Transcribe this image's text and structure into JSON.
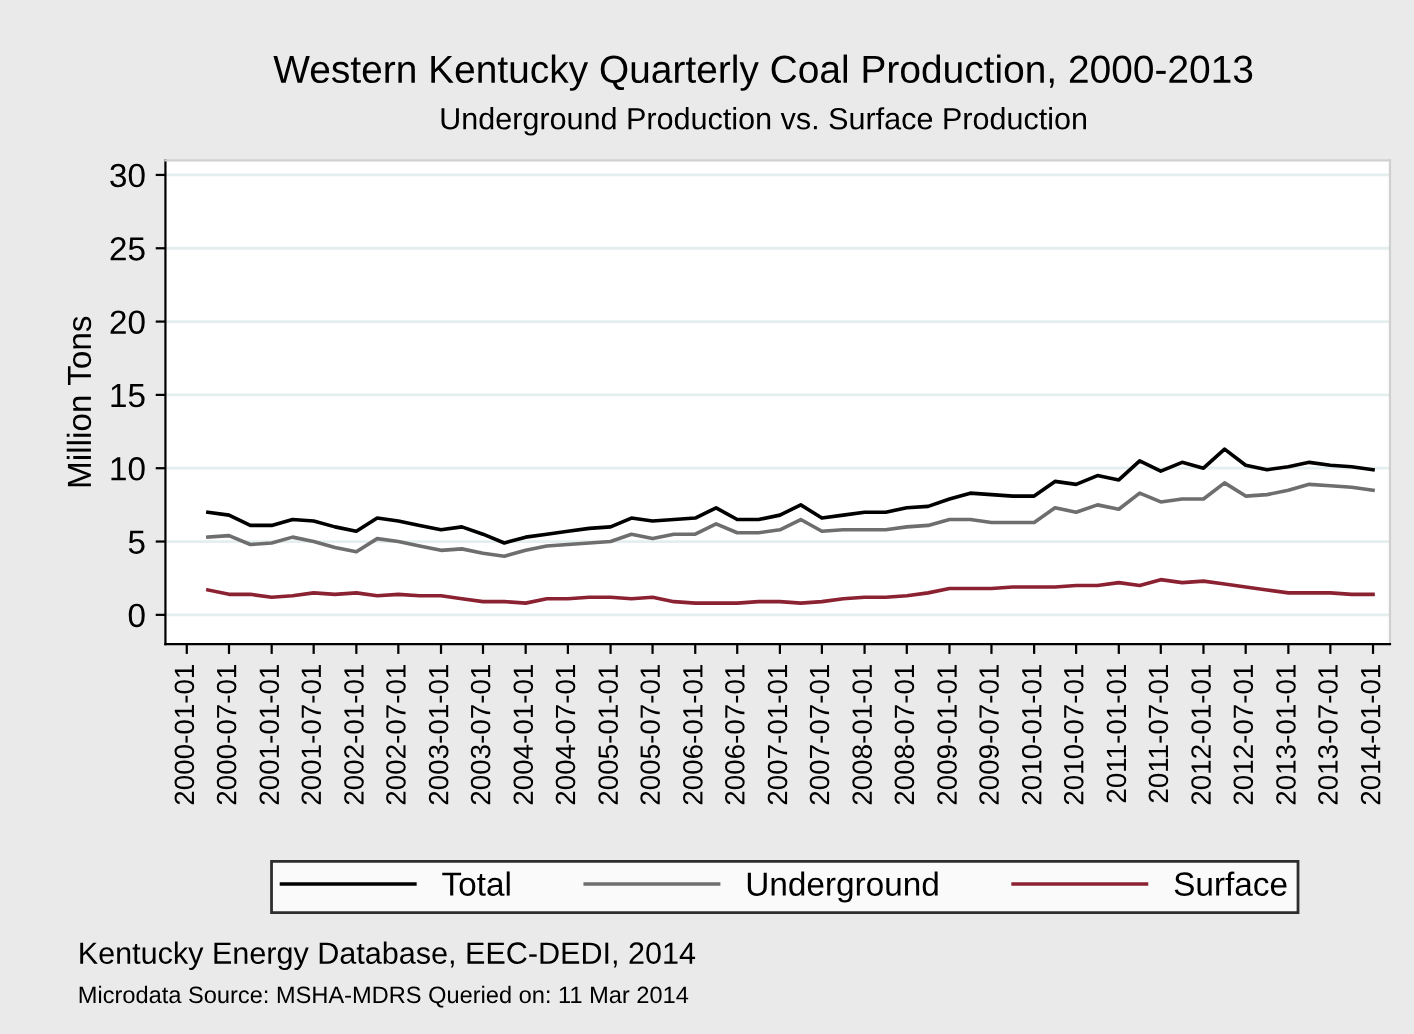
{
  "chart_data": {
    "type": "line",
    "title": "Western Kentucky Quarterly Coal Production, 2000-2013",
    "subtitle": "Underground Production vs. Surface Production",
    "ylabel": "Million Tons",
    "x": [
      "2000-04-01",
      "2000-07-01",
      "2000-10-01",
      "2001-01-01",
      "2001-04-01",
      "2001-07-01",
      "2001-10-01",
      "2002-01-01",
      "2002-04-01",
      "2002-07-01",
      "2002-10-01",
      "2003-01-01",
      "2003-04-01",
      "2003-07-01",
      "2003-10-01",
      "2004-01-01",
      "2004-04-01",
      "2004-07-01",
      "2004-10-01",
      "2005-01-01",
      "2005-04-01",
      "2005-07-01",
      "2005-10-01",
      "2006-01-01",
      "2006-04-01",
      "2006-07-01",
      "2006-10-01",
      "2007-01-01",
      "2007-04-01",
      "2007-07-01",
      "2007-10-01",
      "2008-01-01",
      "2008-04-01",
      "2008-07-01",
      "2008-10-01",
      "2009-01-01",
      "2009-04-01",
      "2009-07-01",
      "2009-10-01",
      "2010-01-01",
      "2010-04-01",
      "2010-07-01",
      "2010-10-01",
      "2011-01-01",
      "2011-04-01",
      "2011-07-01",
      "2011-10-01",
      "2012-01-01",
      "2012-04-01",
      "2012-07-01",
      "2012-10-01",
      "2013-01-01",
      "2013-04-01",
      "2013-07-01",
      "2013-10-01",
      "2014-01-01"
    ],
    "series": [
      {
        "name": "Total",
        "color": "#000000",
        "values": [
          7.0,
          6.8,
          6.1,
          6.1,
          6.5,
          6.4,
          6.0,
          5.7,
          6.6,
          6.4,
          6.1,
          5.8,
          6.0,
          5.5,
          4.9,
          5.3,
          5.5,
          5.7,
          5.9,
          6.0,
          6.6,
          6.4,
          6.5,
          6.6,
          7.3,
          6.5,
          6.5,
          6.8,
          7.5,
          6.6,
          6.8,
          7.0,
          7.0,
          7.3,
          7.4,
          7.9,
          8.3,
          8.2,
          8.1,
          8.1,
          9.1,
          8.9,
          9.5,
          9.2,
          10.5,
          9.8,
          10.4,
          10.0,
          11.3,
          10.2,
          9.9,
          10.1,
          10.4,
          10.2,
          10.1,
          9.9
        ]
      },
      {
        "name": "Underground",
        "color": "#6e6e6e",
        "values": [
          5.3,
          5.4,
          4.8,
          4.9,
          5.3,
          5.0,
          4.6,
          4.3,
          5.2,
          5.0,
          4.7,
          4.4,
          4.5,
          4.2,
          4.0,
          4.4,
          4.7,
          4.8,
          4.9,
          5.0,
          5.5,
          5.2,
          5.5,
          5.5,
          6.2,
          5.6,
          5.6,
          5.8,
          6.5,
          5.7,
          5.8,
          5.8,
          5.8,
          6.0,
          6.1,
          6.5,
          6.5,
          6.3,
          6.3,
          6.3,
          7.3,
          7.0,
          7.5,
          7.2,
          8.3,
          7.7,
          7.9,
          7.9,
          9.0,
          8.1,
          8.2,
          8.5,
          8.9,
          8.8,
          8.7,
          8.5
        ]
      },
      {
        "name": "Surface",
        "color": "#8b2232",
        "values": [
          1.7,
          1.4,
          1.4,
          1.2,
          1.3,
          1.5,
          1.4,
          1.5,
          1.3,
          1.4,
          1.3,
          1.3,
          1.1,
          0.9,
          0.9,
          0.8,
          1.1,
          1.1,
          1.2,
          1.2,
          1.1,
          1.2,
          0.9,
          0.8,
          0.8,
          0.8,
          0.9,
          0.9,
          0.8,
          0.9,
          1.1,
          1.2,
          1.2,
          1.3,
          1.5,
          1.8,
          1.8,
          1.8,
          1.9,
          1.9,
          1.9,
          2.0,
          2.0,
          2.2,
          2.0,
          2.4,
          2.2,
          2.3,
          2.1,
          1.9,
          1.7,
          1.5,
          1.5,
          1.5,
          1.4,
          1.4
        ]
      }
    ],
    "xlim": [
      "1999-10-01",
      "2014-03-15"
    ],
    "xticks": [
      "2000-01-01",
      "2000-07-01",
      "2001-01-01",
      "2001-07-01",
      "2002-01-01",
      "2002-07-01",
      "2003-01-01",
      "2003-07-01",
      "2004-01-01",
      "2004-07-01",
      "2005-01-01",
      "2005-07-01",
      "2006-01-01",
      "2006-07-01",
      "2007-01-01",
      "2007-07-01",
      "2008-01-01",
      "2008-07-01",
      "2009-01-01",
      "2009-07-01",
      "2010-01-01",
      "2010-07-01",
      "2011-01-01",
      "2011-07-01",
      "2012-01-01",
      "2012-07-01",
      "2013-01-01",
      "2013-07-01",
      "2014-01-01"
    ],
    "ylim": [
      -2,
      31
    ],
    "yticks": [
      0,
      5,
      10,
      15,
      20,
      25,
      30
    ],
    "grid": "y",
    "legend": "bottom",
    "marker": "none",
    "line_style": "solid",
    "annotations": [
      "Kentucky Energy Database, EEC-DEDI, 2014",
      "Microdata Source: MSHA-MDRS Queried on: 11 Mar 2014"
    ]
  }
}
